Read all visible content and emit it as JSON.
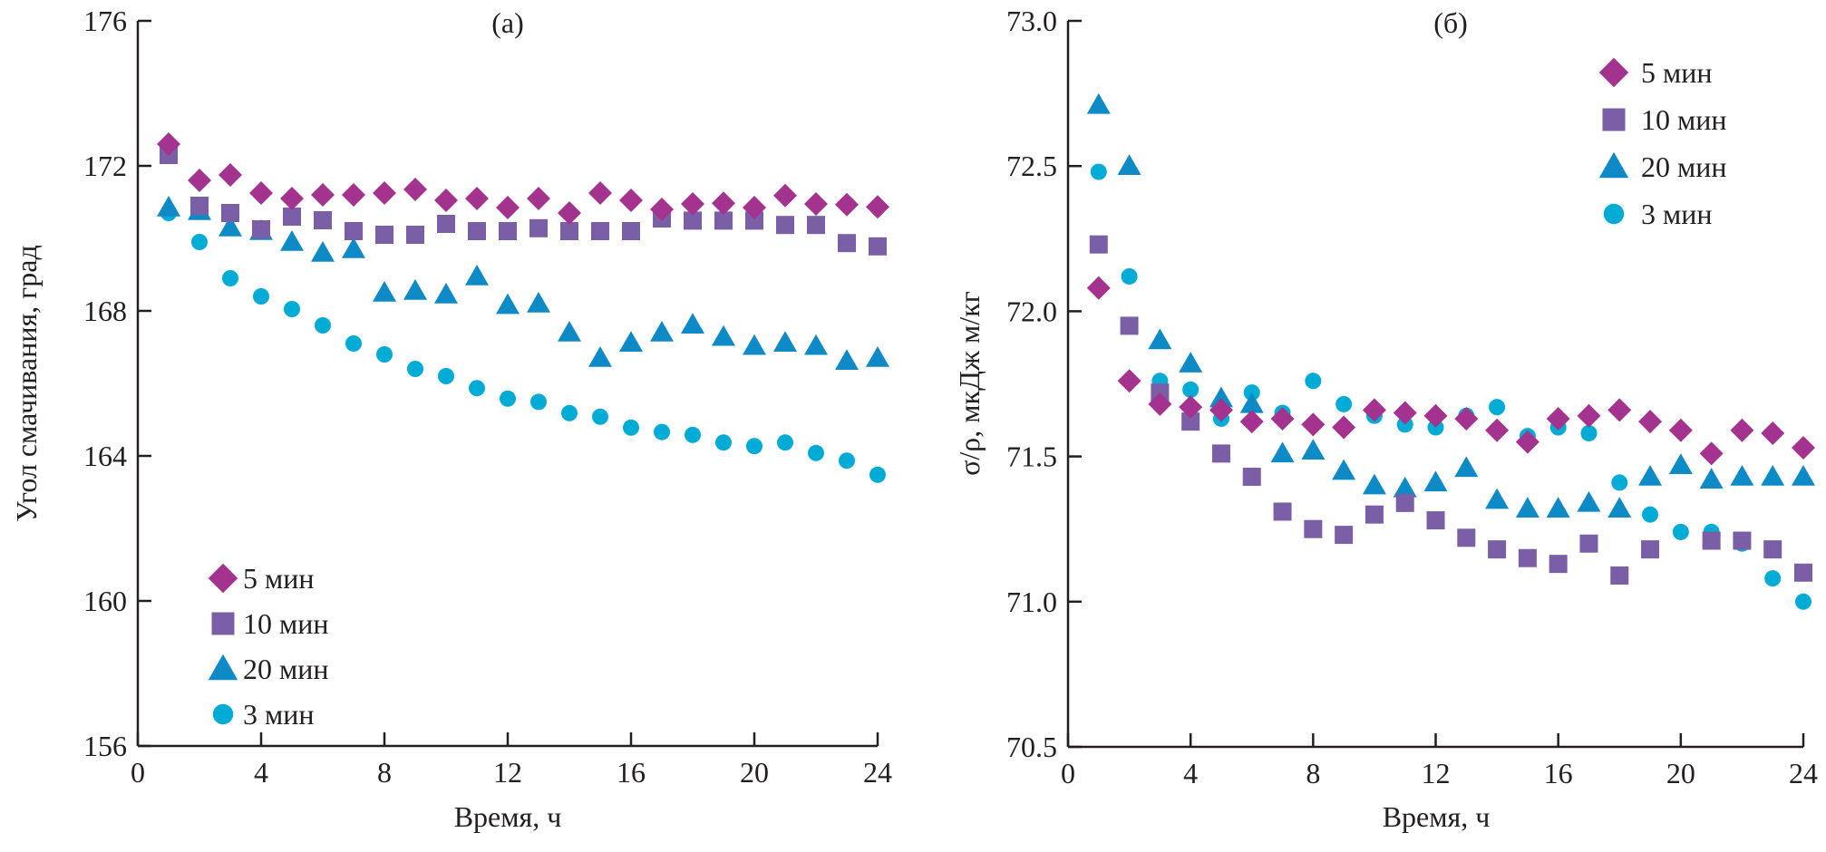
{
  "colors": {
    "5min": "#a3338f",
    "10min": "#7a5fa6",
    "20min": "#0e8bc7",
    "3min": "#00abd6",
    "axis": "#231f20"
  },
  "chart_data": [
    {
      "type": "scatter",
      "panel_label": "(а)",
      "xlabel": "Время, ч",
      "ylabel": "Угол смачивания, град",
      "xlim": [
        0,
        24
      ],
      "ylim": [
        156,
        176
      ],
      "xticks": [
        0,
        4,
        8,
        12,
        16,
        20,
        24
      ],
      "yticks": [
        156,
        160,
        164,
        168,
        172,
        176
      ],
      "ytick_labels": [
        "156",
        "160",
        "164",
        "168",
        "172",
        "176"
      ],
      "grid": false,
      "legend_position": "bottom-left",
      "x": [
        1,
        2,
        3,
        4,
        5,
        6,
        7,
        8,
        9,
        10,
        11,
        12,
        13,
        14,
        15,
        16,
        17,
        18,
        19,
        20,
        21,
        22,
        23,
        24
      ],
      "series": [
        {
          "name": "5 мин",
          "key": "5min",
          "marker": "diamond",
          "values": [
            172.6,
            171.6,
            171.75,
            171.25,
            171.1,
            171.2,
            171.2,
            171.25,
            171.35,
            171.05,
            171.1,
            170.85,
            171.1,
            170.7,
            171.25,
            171.05,
            170.8,
            170.95,
            170.97,
            170.85,
            171.18,
            170.95,
            170.93,
            170.87
          ]
        },
        {
          "name": "10 мин",
          "key": "10min",
          "marker": "square",
          "values": [
            172.3,
            170.9,
            170.7,
            170.25,
            170.6,
            170.5,
            170.2,
            170.1,
            170.1,
            170.4,
            170.2,
            170.2,
            170.28,
            170.2,
            170.2,
            170.2,
            170.55,
            170.49,
            170.49,
            170.49,
            170.37,
            170.37,
            169.87,
            169.78
          ]
        },
        {
          "name": "20 мин",
          "key": "20min",
          "marker": "triangle",
          "values": [
            170.85,
            170.75,
            170.3,
            170.2,
            169.9,
            169.6,
            169.7,
            168.5,
            168.55,
            168.45,
            168.95,
            168.16,
            168.2,
            167.4,
            166.7,
            167.12,
            167.4,
            167.62,
            167.28,
            167.03,
            167.12,
            167.03,
            166.62,
            166.7
          ]
        },
        {
          "name": "3 мин",
          "key": "3min",
          "marker": "circle",
          "values": [
            170.7,
            169.9,
            168.9,
            168.4,
            168.05,
            167.6,
            167.1,
            166.8,
            166.4,
            166.2,
            165.87,
            165.58,
            165.49,
            165.18,
            165.08,
            164.78,
            164.66,
            164.58,
            164.37,
            164.27,
            164.37,
            164.08,
            163.87,
            163.48
          ]
        }
      ]
    },
    {
      "type": "scatter",
      "panel_label": "(б)",
      "xlabel": "Время, ч",
      "ylabel": "σ/ρ, мкДж м/кг",
      "xlim": [
        0,
        24
      ],
      "ylim": [
        70.5,
        73.0
      ],
      "xticks": [
        0,
        4,
        8,
        12,
        16,
        20,
        24
      ],
      "yticks": [
        70.5,
        71.0,
        71.5,
        72.0,
        72.5,
        73.0
      ],
      "ytick_labels": [
        "70.5",
        "71.0",
        "71.5",
        "72.0",
        "72.5",
        "73.0"
      ],
      "grid": false,
      "legend_position": "top-right",
      "x": [
        1,
        2,
        3,
        4,
        5,
        6,
        7,
        8,
        9,
        10,
        11,
        12,
        13,
        14,
        15,
        16,
        17,
        18,
        19,
        20,
        21,
        22,
        23,
        24
      ],
      "series": [
        {
          "name": "5 мин",
          "key": "5min",
          "marker": "diamond",
          "values": [
            72.08,
            71.76,
            71.68,
            71.67,
            71.66,
            71.62,
            71.63,
            71.61,
            71.6,
            71.66,
            71.65,
            71.64,
            71.63,
            71.59,
            71.55,
            71.63,
            71.64,
            71.66,
            71.62,
            71.59,
            71.51,
            71.59,
            71.58,
            71.53
          ]
        },
        {
          "name": "10 мин",
          "key": "10min",
          "marker": "square",
          "values": [
            72.23,
            71.95,
            71.72,
            71.62,
            71.51,
            71.43,
            71.31,
            71.25,
            71.23,
            71.3,
            71.34,
            71.28,
            71.22,
            71.18,
            71.15,
            71.13,
            71.2,
            71.09,
            71.18,
            null,
            71.21,
            71.21,
            71.18,
            71.1
          ]
        },
        {
          "name": "20 мин",
          "key": "20min",
          "marker": "triangle",
          "values": [
            72.71,
            72.5,
            71.9,
            71.82,
            71.7,
            71.68,
            71.51,
            71.52,
            71.45,
            71.4,
            71.39,
            71.41,
            71.46,
            71.35,
            71.32,
            71.32,
            71.34,
            71.32,
            71.43,
            71.47,
            71.42,
            71.43,
            71.43,
            71.43
          ]
        },
        {
          "name": "3 мин",
          "key": "3min",
          "marker": "circle",
          "values": [
            72.48,
            72.12,
            71.76,
            71.73,
            71.63,
            71.72,
            71.65,
            71.76,
            71.68,
            71.64,
            71.61,
            71.6,
            71.64,
            71.67,
            71.57,
            71.6,
            71.58,
            71.41,
            71.3,
            71.24,
            71.24,
            71.2,
            71.08,
            71.0
          ]
        }
      ]
    }
  ]
}
